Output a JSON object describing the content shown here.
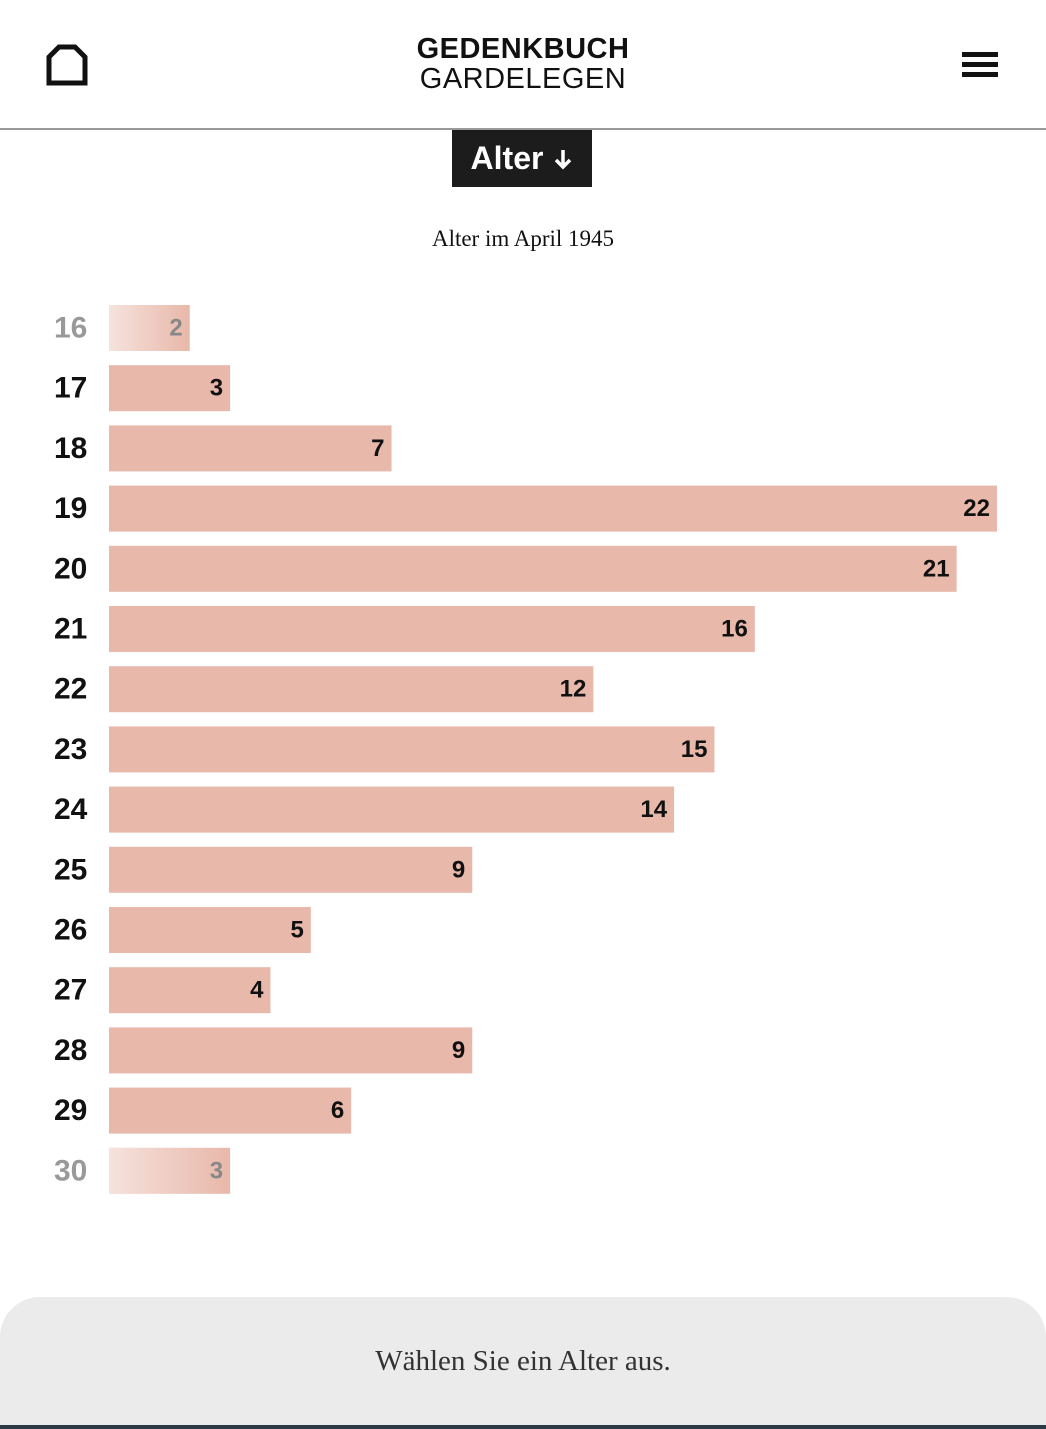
{
  "header": {
    "title_line1": "GEDENKBUCH",
    "title_line2": "GARDELEGEN"
  },
  "sort_button": {
    "label": "Alter"
  },
  "chart_data": {
    "type": "bar",
    "orientation": "horizontal",
    "subtitle": "Alter im April 1945",
    "categories": [
      "16",
      "17",
      "18",
      "19",
      "20",
      "21",
      "22",
      "23",
      "24",
      "25",
      "26",
      "27",
      "28",
      "29",
      "30"
    ],
    "values": [
      2,
      3,
      7,
      22,
      21,
      16,
      12,
      15,
      14,
      9,
      5,
      4,
      9,
      6,
      3
    ],
    "color": "#e8b8aa"
  },
  "footer": {
    "prompt": "Wählen Sie ein Alter aus."
  }
}
